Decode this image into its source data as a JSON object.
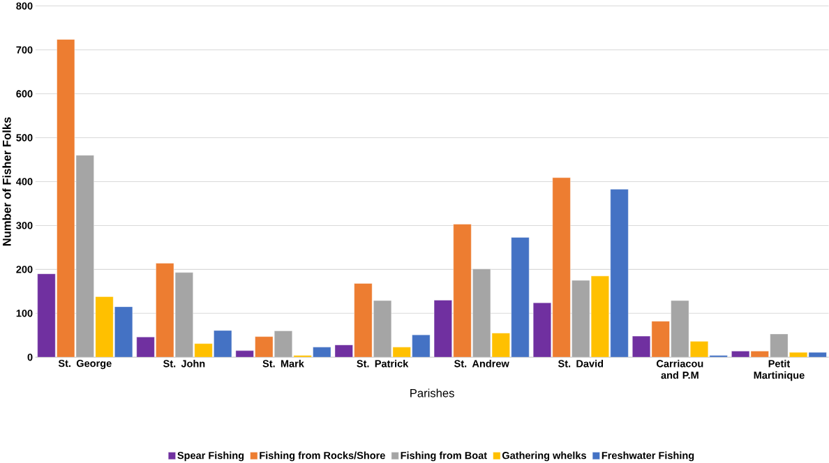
{
  "chart_data": {
    "type": "bar",
    "xlabel": "Parishes",
    "ylabel": "Number of Fisher Folks",
    "categories": [
      "St. George",
      "St. John",
      "St. Mark",
      "St. Patrick",
      "St. Andrew",
      "St. David",
      "Carriacou and P.M",
      "Petit Martinique"
    ],
    "series": [
      {
        "name": "Spear Fishing",
        "color": "#7030a0",
        "values": [
          190,
          46,
          15,
          28,
          130,
          124,
          48,
          14
        ]
      },
      {
        "name": "Fishing from Rocks/Shore",
        "color": "#ed7d31",
        "values": [
          724,
          214,
          47,
          168,
          303,
          409,
          82,
          14
        ]
      },
      {
        "name": "Fishing from Boat",
        "color": "#a5a5a5",
        "values": [
          460,
          193,
          60,
          129,
          201,
          175,
          129,
          53
        ]
      },
      {
        "name": "Gathering whelks",
        "color": "#ffc000",
        "values": [
          138,
          31,
          4,
          23,
          55,
          185,
          36,
          11
        ]
      },
      {
        "name": "Freshwater Fishing",
        "color": "#4472c4",
        "values": [
          115,
          61,
          23,
          51,
          273,
          383,
          4,
          11
        ]
      }
    ],
    "ylim": [
      0,
      800
    ],
    "yticks": [
      0,
      100,
      200,
      300,
      400,
      500,
      600,
      700,
      800
    ],
    "grid": "y",
    "legend": "bottom"
  }
}
